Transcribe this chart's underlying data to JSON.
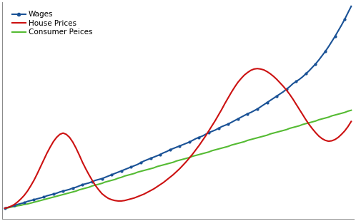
{
  "background_color": "#ffffff",
  "plot_background": "#ffffff",
  "grid_color": "#c8c8c8",
  "wages_color": "#1a5296",
  "house_color": "#cc1111",
  "consumer_color": "#55bb33",
  "legend_labels": [
    "Wages",
    "House Prices",
    "Consumer Peices"
  ],
  "ylim": [
    75,
    580
  ],
  "xlim_start": 1983,
  "xlim_end": 2020,
  "linewidth": 1.5,
  "wages": [
    100,
    102,
    104,
    107,
    109,
    111,
    113,
    116,
    118,
    120,
    122,
    124,
    126,
    129,
    131,
    133,
    135,
    138,
    140,
    142,
    144,
    147,
    149,
    152,
    155,
    157,
    159,
    162,
    165,
    167,
    169,
    172,
    175,
    178,
    181,
    184,
    187,
    190,
    193,
    196,
    199,
    202,
    206,
    210,
    213,
    216,
    219,
    222,
    225,
    229,
    232,
    236,
    239,
    242,
    245,
    248,
    251,
    254,
    258,
    262,
    265,
    268,
    272,
    276,
    279,
    282,
    286,
    290,
    293,
    296,
    300,
    304,
    308,
    312,
    316,
    320,
    323,
    327,
    331,
    336,
    341,
    346,
    351,
    356,
    361,
    366,
    371,
    377,
    383,
    390,
    395,
    400,
    406,
    413,
    420,
    428,
    436,
    445,
    455,
    465,
    476,
    488,
    500,
    513,
    526,
    540,
    555,
    570
  ],
  "house_prices": [
    100,
    102,
    105,
    109,
    115,
    122,
    130,
    140,
    152,
    165,
    180,
    196,
    212,
    228,
    242,
    255,
    265,
    272,
    275,
    272,
    265,
    254,
    240,
    224,
    207,
    192,
    178,
    165,
    153,
    143,
    134,
    128,
    123,
    120,
    118,
    117,
    117,
    118,
    120,
    122,
    124,
    127,
    130,
    133,
    137,
    141,
    145,
    150,
    155,
    160,
    166,
    172,
    178,
    185,
    192,
    200,
    208,
    217,
    226,
    236,
    246,
    257,
    268,
    280,
    292,
    304,
    317,
    330,
    344,
    357,
    370,
    382,
    393,
    402,
    410,
    416,
    421,
    424,
    425,
    424,
    422,
    418,
    413,
    407,
    400,
    392,
    384,
    375,
    365,
    354,
    342,
    330,
    318,
    306,
    295,
    285,
    276,
    268,
    262,
    258,
    256,
    257,
    260,
    265,
    272,
    280,
    290,
    302
  ],
  "consumer_prices": [
    100,
    101,
    103,
    104,
    106,
    107,
    109,
    110,
    112,
    114,
    116,
    118,
    120,
    122,
    124,
    126,
    128,
    130,
    132,
    134,
    136,
    138,
    140,
    143,
    145,
    147,
    149,
    152,
    154,
    156,
    158,
    161,
    163,
    165,
    167,
    170,
    172,
    175,
    177,
    179,
    181,
    184,
    186,
    188,
    190,
    192,
    194,
    197,
    199,
    201,
    203,
    205,
    207,
    210,
    212,
    214,
    216,
    218,
    221,
    223,
    225,
    227,
    229,
    231,
    234,
    236,
    238,
    240,
    242,
    244,
    247,
    249,
    251,
    253,
    255,
    258,
    260,
    262,
    264,
    266,
    268,
    270,
    273,
    275,
    277,
    279,
    281,
    283,
    286,
    288,
    290,
    292,
    295,
    297,
    299,
    301,
    303,
    306,
    308,
    310,
    312,
    315,
    317,
    319,
    321,
    323,
    326,
    328
  ]
}
